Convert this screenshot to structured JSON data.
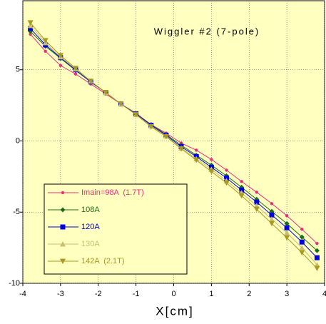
{
  "chart_data": {
    "type": "line",
    "title": "Wiggler #2 (7-pole)",
    "x_label": "X[cm]",
    "x": [
      -3.8,
      -3.4,
      -3.0,
      -2.6,
      -2.2,
      -1.8,
      -1.4,
      -1.0,
      -0.6,
      -0.2,
      0.2,
      0.6,
      1.0,
      1.4,
      1.8,
      2.2,
      2.6,
      3.0,
      3.4,
      3.8
    ],
    "xlim": [
      -4,
      4
    ],
    "xticks": [
      -4,
      -3,
      -2,
      -1,
      0,
      1,
      2,
      3,
      4
    ],
    "ylim": [
      -10,
      9.85
    ],
    "yticks": [
      -10,
      -5,
      0,
      5
    ],
    "grid": true,
    "background": "#ffffc0",
    "legend": "lower-left",
    "series": [
      {
        "name": "Imain=98A  (1.7T)",
        "color": "#e8307a",
        "marker": "circle",
        "values": [
          7.5,
          6.3,
          5.3,
          4.7,
          4.0,
          3.3,
          2.6,
          1.95,
          1.15,
          0.55,
          -0.15,
          -0.65,
          -1.3,
          -2.05,
          -2.85,
          -3.6,
          -4.4,
          -5.25,
          -6.2,
          -7.2
        ]
      },
      {
        "name": "108A",
        "color": "#1a6e1a",
        "marker": "diamond",
        "values": [
          7.7,
          6.65,
          5.8,
          4.95,
          4.15,
          3.4,
          2.6,
          1.9,
          1.15,
          0.45,
          -0.3,
          -1.0,
          -1.7,
          -2.45,
          -3.25,
          -4.1,
          -4.95,
          -5.8,
          -6.75,
          -7.7
        ]
      },
      {
        "name": "120A",
        "color": "#0000e0",
        "marker": "square",
        "values": [
          7.9,
          6.75,
          5.85,
          5.0,
          4.15,
          3.4,
          2.6,
          1.9,
          1.1,
          0.4,
          -0.4,
          -1.1,
          -1.85,
          -2.6,
          -3.45,
          -4.3,
          -5.2,
          -6.1,
          -7.1,
          -8.2
        ]
      },
      {
        "name": "130A",
        "color": "#c8c070",
        "marker": "triangle-up",
        "values": [
          8.1,
          6.9,
          5.9,
          5.05,
          4.2,
          3.4,
          2.6,
          1.85,
          1.05,
          0.35,
          -0.5,
          -1.25,
          -2.0,
          -2.8,
          -3.65,
          -4.55,
          -5.5,
          -6.45,
          -7.5,
          -8.7
        ]
      },
      {
        "name": "142A  (2.1T)",
        "color": "#a89a20",
        "marker": "triangle-down",
        "values": [
          8.3,
          7.05,
          6.0,
          5.1,
          4.2,
          3.4,
          2.6,
          1.85,
          1.0,
          0.3,
          -0.55,
          -1.35,
          -2.15,
          -2.95,
          -3.85,
          -4.8,
          -5.8,
          -6.8,
          -7.85,
          -8.95
        ]
      }
    ]
  }
}
